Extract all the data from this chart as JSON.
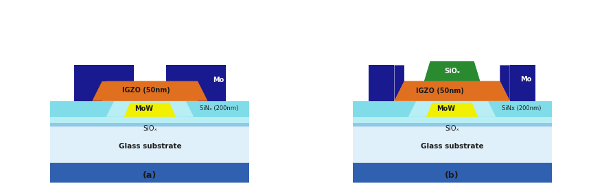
{
  "fig_width": 8.77,
  "fig_height": 2.72,
  "dpi": 100,
  "bg_color": "#ffffff",
  "colors": {
    "dark_blue": "#1a1a90",
    "orange": "#e07020",
    "yellow": "#f0f000",
    "cyan_thick": "#80dce8",
    "cyan_thin": "#b8eef4",
    "white_light": "#e8f4fc",
    "glass_white": "#dff0fa",
    "glass_blue": "#3060b0",
    "green": "#2a8a30",
    "label_black": "#1a1a1a",
    "mo_text_white": "#ffffff"
  },
  "panel_a_label": "(a)",
  "panel_b_label": "(b)",
  "label_igzo": "IGZO (50nm)",
  "label_mo": "Mo",
  "label_mow": "MoW",
  "label_sinx_a": "SiNₓ (200nm)",
  "label_sinx_b": "SiNx (200nm)",
  "label_siox": "SiOₓ",
  "label_glass": "Glass substrate"
}
